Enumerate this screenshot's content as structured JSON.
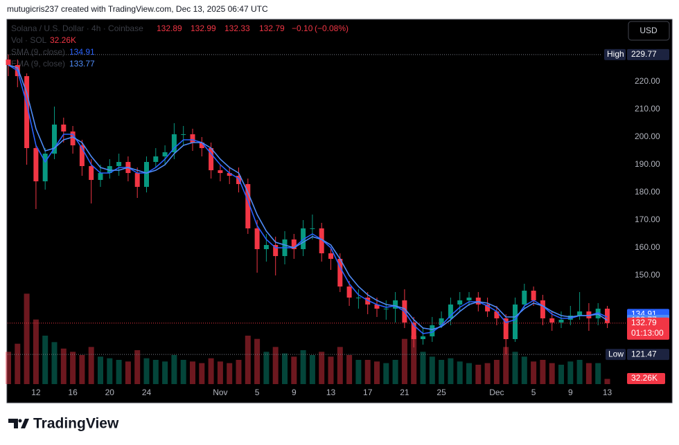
{
  "header": {
    "caption": "mutugicris237 created with TradingView.com, Dec 13, 2025 06:47 UTC"
  },
  "footer": {
    "brand": "TradingView"
  },
  "chart_data": {
    "type": "candlestick",
    "symbol": "Solana / U.S. Dollar · 4h · Coinbase",
    "ohlc_legend": {
      "open": 132.89,
      "high": 132.99,
      "low": 132.33,
      "close": 132.79,
      "change": {
        "value": -0.1,
        "label": "−0.10"
      },
      "change_pct": {
        "value": -0.08,
        "label": "(−0.08%)"
      }
    },
    "currency": "USD",
    "categories": [
      null,
      null,
      null,
      "12",
      null,
      null,
      null,
      "16",
      null,
      null,
      null,
      "20",
      null,
      null,
      null,
      "24",
      null,
      null,
      null,
      null,
      null,
      null,
      null,
      "Nov",
      null,
      null,
      null,
      "5",
      null,
      null,
      null,
      "9",
      null,
      null,
      null,
      "13",
      null,
      null,
      null,
      "17",
      null,
      null,
      null,
      "21",
      null,
      null,
      null,
      "25",
      null,
      null,
      null,
      null,
      null,
      "Dec",
      null,
      null,
      null,
      "5",
      null,
      null,
      null,
      "9",
      null,
      null,
      null,
      "13"
    ],
    "open": [
      228,
      226,
      222,
      196,
      184,
      194,
      204.5,
      202,
      197,
      189.5,
      184.5,
      187,
      189.5,
      191,
      187,
      182,
      191,
      193,
      194.5,
      201,
      201,
      198,
      196,
      188,
      187,
      186,
      183,
      167,
      159.5,
      161,
      157,
      163,
      159.5,
      167,
      167,
      158,
      156,
      146,
      142,
      142,
      139.5,
      138,
      138,
      141,
      133,
      127,
      128,
      132,
      134.5,
      139.5,
      141,
      142,
      139.5,
      137,
      134.5,
      127,
      139.5,
      144.5,
      141,
      134.5,
      133,
      134,
      135.5,
      137,
      134.5,
      138
    ],
    "high": [
      229.77,
      228,
      223,
      197,
      196,
      211,
      207,
      204,
      199,
      192,
      190,
      192,
      194,
      193,
      189,
      193,
      196,
      197,
      205,
      204,
      203,
      200,
      198,
      190,
      189,
      189,
      185,
      170,
      165,
      164,
      166,
      165,
      170,
      172,
      169,
      160,
      158,
      148,
      145,
      144,
      142,
      141,
      144,
      145,
      135,
      131,
      135,
      137,
      142,
      144,
      144,
      144,
      142,
      139,
      136,
      142,
      147,
      146,
      143,
      137,
      137,
      139,
      144,
      140,
      140,
      139
    ],
    "low": [
      222,
      218,
      190,
      174,
      181,
      192,
      198,
      194,
      186,
      176,
      182,
      185,
      186,
      184,
      178,
      180,
      189,
      190,
      192,
      197,
      195,
      193,
      185,
      184,
      183,
      180,
      165,
      151,
      155,
      150,
      154,
      156,
      157,
      163,
      155,
      152,
      144,
      139,
      138,
      136,
      135,
      134,
      133,
      131,
      124,
      125,
      126,
      131,
      132,
      137,
      139,
      137,
      135,
      132,
      121.47,
      126,
      138,
      139,
      132,
      130,
      131,
      132,
      134,
      130,
      132,
      131
    ],
    "close": [
      226,
      222,
      196,
      184,
      194,
      204.5,
      202,
      197,
      189.5,
      184.5,
      187,
      189.5,
      191,
      187,
      182,
      191,
      193,
      194.5,
      201,
      201,
      198,
      196,
      188,
      187,
      186,
      183,
      167,
      159.5,
      161,
      157,
      163,
      159.5,
      167,
      167,
      158,
      156,
      146,
      142,
      142,
      139.5,
      138,
      138,
      141,
      133,
      127,
      128,
      132,
      134.5,
      139.5,
      141,
      142,
      139.5,
      137,
      134.5,
      127,
      139.5,
      144.5,
      141,
      134.5,
      133,
      134,
      135.5,
      137,
      134.5,
      138,
      132.79
    ],
    "up_color": "#089981",
    "down_color": "#f23645",
    "ylim": [
      110.75,
      242.5
    ],
    "yticks": [
      {
        "value": 150,
        "label": "150.00"
      },
      {
        "value": 160,
        "label": "160.00"
      },
      {
        "value": 170,
        "label": "170.00"
      },
      {
        "value": 180,
        "label": "180.00"
      },
      {
        "value": 190,
        "label": "190.00"
      },
      {
        "value": 200,
        "label": "200.00"
      },
      {
        "value": 210,
        "label": "210.00"
      },
      {
        "value": 220,
        "label": "220.00"
      }
    ],
    "high_marker": {
      "label": "High",
      "value": 229.77
    },
    "low_marker": {
      "label": "Low",
      "value": 121.47
    },
    "last_price": {
      "value": 132.79,
      "countdown": "01:13:00"
    },
    "volume": {
      "name": "Vol · SOL",
      "vlim": [
        0,
        600
      ],
      "last_label": "32.26K",
      "values": [
        200,
        250,
        560,
        400,
        300,
        260,
        220,
        200,
        180,
        230,
        170,
        160,
        150,
        140,
        210,
        160,
        150,
        140,
        180,
        150,
        140,
        130,
        160,
        140,
        130,
        150,
        300,
        280,
        200,
        230,
        190,
        170,
        210,
        180,
        200,
        170,
        230,
        180,
        150,
        150,
        140,
        130,
        150,
        280,
        300,
        200,
        170,
        150,
        160,
        140,
        130,
        120,
        130,
        150,
        230,
        200,
        170,
        140,
        150,
        130,
        120,
        140,
        150,
        130,
        130,
        32.26
      ]
    },
    "series": [
      {
        "name": "SMA (9, close)",
        "color": "#2962ff",
        "values": [
          226,
          224,
          212,
          197,
          191,
          196,
          201,
          201,
          196,
          190,
          187,
          187,
          189,
          189,
          187,
          187,
          189,
          192,
          196,
          199,
          199,
          198,
          194,
          190,
          187,
          185,
          177,
          168,
          163,
          160,
          160,
          160,
          163,
          165,
          163,
          160,
          153,
          147,
          143,
          141,
          139.5,
          138.5,
          139,
          137,
          132,
          129,
          129.5,
          132,
          135.5,
          138.5,
          140.5,
          140.5,
          139,
          137,
          133,
          134,
          139,
          141,
          139,
          136,
          134.5,
          134.5,
          135.5,
          135.5,
          136.5,
          134.91
        ]
      },
      {
        "name": "EMA (9, close)",
        "color": "#4f8cf7",
        "values": [
          226,
          225,
          216,
          203,
          195,
          196,
          199,
          200,
          198,
          193,
          189,
          188,
          188,
          189,
          188,
          187,
          188,
          190,
          194,
          197,
          198,
          198,
          196,
          192,
          189,
          187,
          180,
          172,
          166,
          162,
          161,
          160,
          162,
          164,
          163,
          161,
          156,
          150,
          146,
          143,
          141,
          139.5,
          139,
          138,
          134,
          131,
          130.5,
          131.5,
          134,
          137,
          139.5,
          140.5,
          140,
          138.5,
          135,
          135,
          138,
          140,
          139,
          137,
          135.5,
          135,
          135.5,
          135.5,
          136,
          133.77
        ]
      }
    ]
  }
}
